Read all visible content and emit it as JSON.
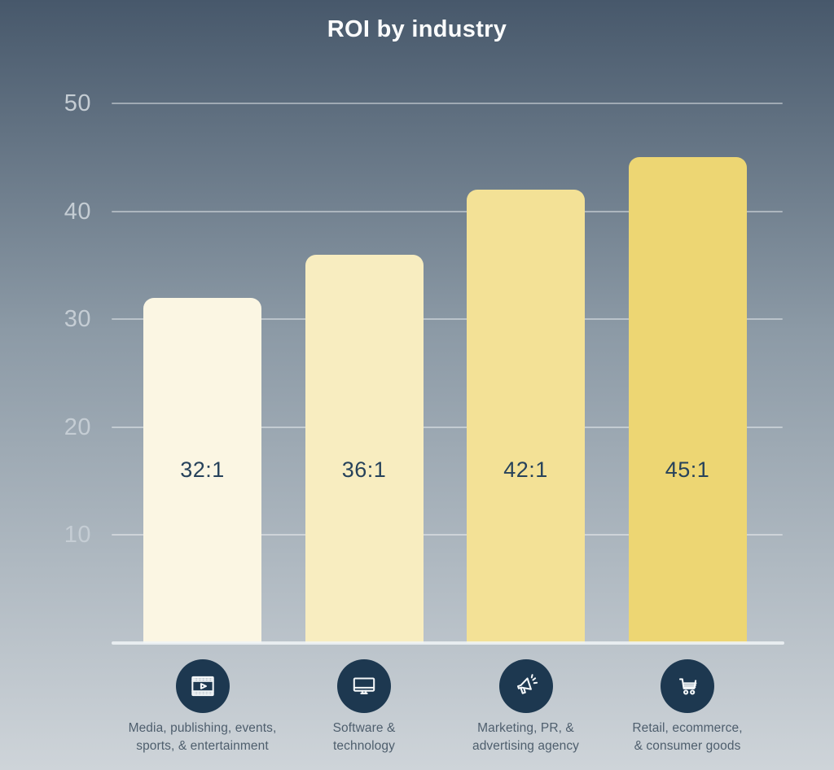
{
  "title": "ROI by industry",
  "colors": {
    "background_top": "#47586B",
    "background_mid": "#8C9AA6",
    "background_bottom": "#CED4D9",
    "title_text": "#FBFCFD",
    "tick_text": "#C5CDD4",
    "gridline": "rgba(255,255,255,0.42)",
    "baseline": "rgba(240,245,247,0.85)",
    "value_text": "#27425B",
    "icon_circle": "#1D3850",
    "icon_glyph": "#F4F7F9",
    "category_text": "#4E5E6D"
  },
  "chart_data": {
    "type": "bar",
    "title": "ROI by industry",
    "xlabel": "",
    "ylabel": "",
    "ylim": [
      0,
      50
    ],
    "yticks": [
      50,
      40,
      30,
      20,
      10
    ],
    "grid": true,
    "legend": false,
    "categories": [
      "Media, publishing, events, sports, & entertainment",
      "Software & technology",
      "Marketing, PR, & advertising agency",
      "Retail, ecommerce, & consumer goods"
    ],
    "bars": [
      {
        "value": 32,
        "value_label": "32:1",
        "color": "#FBF6E3",
        "icon": "film-icon",
        "label_lines": [
          "Media, publishing, events,",
          "sports, & entertainment"
        ]
      },
      {
        "value": 36,
        "value_label": "36:1",
        "color": "#F8EDC0",
        "icon": "monitor-icon",
        "label_lines": [
          "Software &",
          "technology"
        ]
      },
      {
        "value": 42,
        "value_label": "42:1",
        "color": "#F3E196",
        "icon": "megaphone-icon",
        "label_lines": [
          "Marketing, PR, &",
          "advertising agency"
        ]
      },
      {
        "value": 45,
        "value_label": "45:1",
        "color": "#EDD673",
        "icon": "cart-icon",
        "label_lines": [
          "Retail, ecommerce,",
          "& consumer goods"
        ]
      }
    ]
  }
}
